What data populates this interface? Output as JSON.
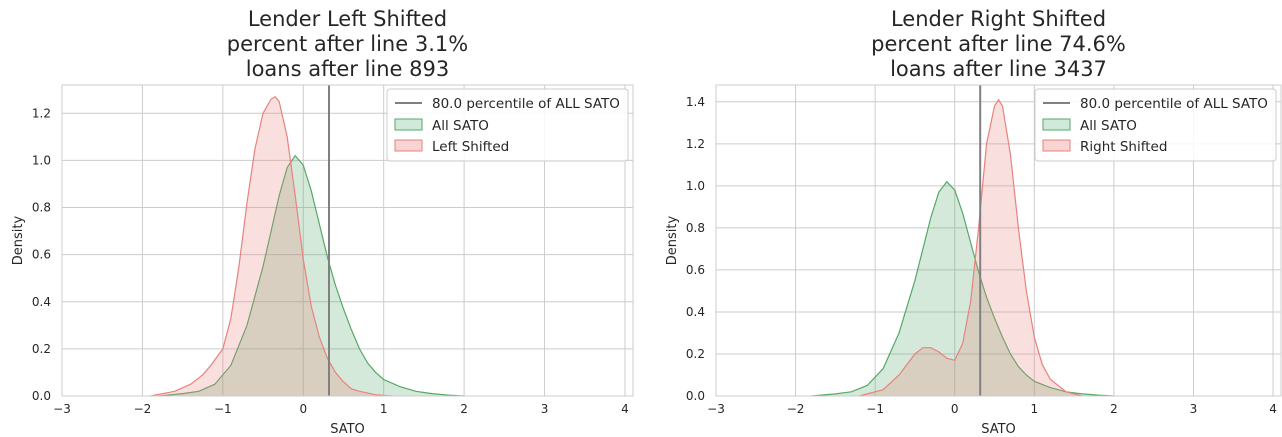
{
  "chart_data": [
    {
      "type": "area",
      "title_lines": [
        "Lender Left Shifted",
        "percent after line 3.1%",
        "loans after line 893"
      ],
      "xlabel": "SATO",
      "ylabel": "Density",
      "xlim": [
        -3,
        4.1
      ],
      "ylim": [
        0,
        1.32
      ],
      "xticks": [
        -3,
        -2,
        -1,
        0,
        1,
        2,
        3,
        4
      ],
      "xtick_labels": [
        "−3",
        "−2",
        "−1",
        "0",
        "1",
        "2",
        "3",
        "4"
      ],
      "yticks": [
        0,
        0.2,
        0.4,
        0.6,
        0.8,
        1.0,
        1.2
      ],
      "ytick_labels": [
        "0.0",
        "0.2",
        "0.4",
        "0.6",
        "0.8",
        "1.0",
        "1.2"
      ],
      "grid": true,
      "legend_position": "top-right",
      "vline": {
        "x": 0.32,
        "label": "80.0 percentile of ALL SATO",
        "color": "#808080"
      },
      "series": [
        {
          "name": "All SATO",
          "color": "#55a868",
          "fill": "#cfeadb",
          "x": [
            -1.8,
            -1.5,
            -1.3,
            -1.1,
            -0.9,
            -0.7,
            -0.5,
            -0.3,
            -0.2,
            -0.1,
            0.0,
            0.1,
            0.2,
            0.3,
            0.4,
            0.5,
            0.6,
            0.7,
            0.8,
            0.9,
            1.0,
            1.2,
            1.4,
            1.6,
            1.8,
            2.0
          ],
          "y": [
            0.0,
            0.01,
            0.02,
            0.05,
            0.13,
            0.3,
            0.55,
            0.85,
            0.97,
            1.02,
            0.98,
            0.87,
            0.73,
            0.59,
            0.47,
            0.37,
            0.28,
            0.2,
            0.14,
            0.1,
            0.07,
            0.04,
            0.02,
            0.01,
            0.004,
            0.0
          ]
        },
        {
          "name": "Left Shifted",
          "color": "#e8827d",
          "fill": "#f8d4d2",
          "x": [
            -1.9,
            -1.6,
            -1.4,
            -1.25,
            -1.15,
            -1.0,
            -0.9,
            -0.8,
            -0.7,
            -0.6,
            -0.5,
            -0.4,
            -0.35,
            -0.3,
            -0.2,
            -0.1,
            0.0,
            0.1,
            0.2,
            0.3,
            0.4,
            0.5,
            0.6,
            0.7,
            0.9,
            1.1
          ],
          "y": [
            0.0,
            0.02,
            0.05,
            0.09,
            0.13,
            0.2,
            0.33,
            0.55,
            0.82,
            1.05,
            1.2,
            1.26,
            1.27,
            1.25,
            1.1,
            0.85,
            0.58,
            0.38,
            0.25,
            0.16,
            0.1,
            0.06,
            0.03,
            0.02,
            0.005,
            0.0
          ]
        }
      ]
    },
    {
      "type": "area",
      "title_lines": [
        "Lender Right Shifted",
        "percent after line 74.6%",
        "loans after line 3437"
      ],
      "xlabel": "SATO",
      "ylabel": "Density",
      "xlim": [
        -3,
        4.1
      ],
      "ylim": [
        0,
        1.48
      ],
      "xticks": [
        -3,
        -2,
        -1,
        0,
        1,
        2,
        3,
        4
      ],
      "xtick_labels": [
        "−3",
        "−2",
        "−1",
        "0",
        "1",
        "2",
        "3",
        "4"
      ],
      "yticks": [
        0,
        0.2,
        0.4,
        0.6,
        0.8,
        1.0,
        1.2,
        1.4
      ],
      "ytick_labels": [
        "0.0",
        "0.2",
        "0.4",
        "0.6",
        "0.8",
        "1.0",
        "1.2",
        "1.4"
      ],
      "grid": true,
      "legend_position": "top-right",
      "vline": {
        "x": 0.32,
        "label": "80.0 percentile of ALL SATO",
        "color": "#808080"
      },
      "series": [
        {
          "name": "All SATO",
          "color": "#55a868",
          "fill": "#cfeadb",
          "x": [
            -1.8,
            -1.5,
            -1.3,
            -1.1,
            -0.9,
            -0.7,
            -0.5,
            -0.3,
            -0.2,
            -0.1,
            0.0,
            0.1,
            0.2,
            0.3,
            0.4,
            0.5,
            0.6,
            0.7,
            0.8,
            0.9,
            1.0,
            1.2,
            1.4,
            1.6,
            1.8,
            2.0
          ],
          "y": [
            0.0,
            0.01,
            0.02,
            0.05,
            0.13,
            0.3,
            0.55,
            0.85,
            0.97,
            1.02,
            0.98,
            0.87,
            0.73,
            0.59,
            0.47,
            0.37,
            0.28,
            0.2,
            0.14,
            0.1,
            0.07,
            0.04,
            0.02,
            0.01,
            0.004,
            0.0
          ]
        },
        {
          "name": "Right Shifted",
          "color": "#e8827d",
          "fill": "#f8d4d2",
          "x": [
            -1.2,
            -0.9,
            -0.7,
            -0.5,
            -0.4,
            -0.3,
            -0.2,
            -0.1,
            0.0,
            0.1,
            0.2,
            0.3,
            0.35,
            0.4,
            0.5,
            0.55,
            0.6,
            0.7,
            0.8,
            0.9,
            1.0,
            1.1,
            1.2,
            1.4,
            1.6
          ],
          "y": [
            0.0,
            0.03,
            0.1,
            0.2,
            0.23,
            0.23,
            0.21,
            0.18,
            0.17,
            0.25,
            0.45,
            0.8,
            1.0,
            1.2,
            1.38,
            1.41,
            1.38,
            1.15,
            0.8,
            0.5,
            0.28,
            0.15,
            0.08,
            0.02,
            0.0
          ]
        }
      ]
    }
  ]
}
